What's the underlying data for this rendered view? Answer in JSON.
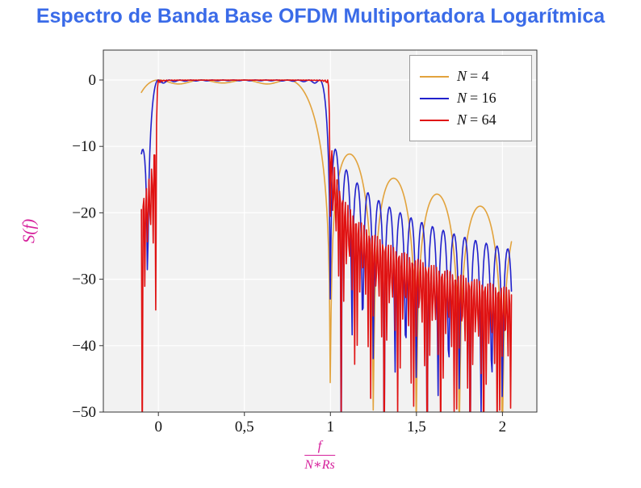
{
  "chart_data": {
    "type": "line",
    "title": "Espectro de Banda Base OFDM Multiportadora Logarítmica",
    "title_color": "#3A6BE8",
    "ylabel": "S(f)",
    "xlabel": "f/(N∗Rs)",
    "xlabel_numerator": "f",
    "xlabel_denominator": "N∗Rs",
    "axis_label_color": "#D6219C",
    "x_ticks": [
      0,
      0.5,
      1,
      1.5,
      2
    ],
    "x_tick_labels": [
      "0",
      "0,5",
      "1",
      "1,5",
      "2"
    ],
    "y_ticks": [
      0,
      -10,
      -20,
      -30,
      -40,
      -50
    ],
    "y_tick_labels": [
      "0",
      "−10",
      "−20",
      "−30",
      "−40",
      "−50"
    ],
    "xlim": [
      -0.32,
      2.2
    ],
    "ylim": [
      -50,
      4.5
    ],
    "x_data_range": [
      -0.0987,
      2.05
    ],
    "sample_step": 0.0049,
    "grid": true,
    "plot_bg": "#F2F2F2",
    "grid_color": "#FFFFFF",
    "border_color": "#333333",
    "tick_label_color": "#111111",
    "legend_position": "top-right",
    "legend_border_color": "#9a9a9a",
    "model": "S_dB(x) = 10*log10( sum_{k=0}^{N-1} sinc^2(N*x - k) ), sinc(t)=sin(pi t)/(pi t), x = f/(N*Rs); flat ~0 dB for 0<x<1, sinc sidelobes beyond x=1 (first sidelobe ~ -11 dB for N=4, deeper/denser nulls as N grows, floor clipped at -50 dB)",
    "series": [
      {
        "label": "N = 4",
        "var": "N",
        "rest": "= 4",
        "N": 4,
        "color": "#E2A33D"
      },
      {
        "label": "N = 16",
        "var": "N",
        "rest": "= 16",
        "N": 16,
        "color": "#2121CC"
      },
      {
        "label": "N = 64",
        "var": "N",
        "rest": "= 64",
        "N": 64,
        "color": "#E01212"
      }
    ]
  }
}
